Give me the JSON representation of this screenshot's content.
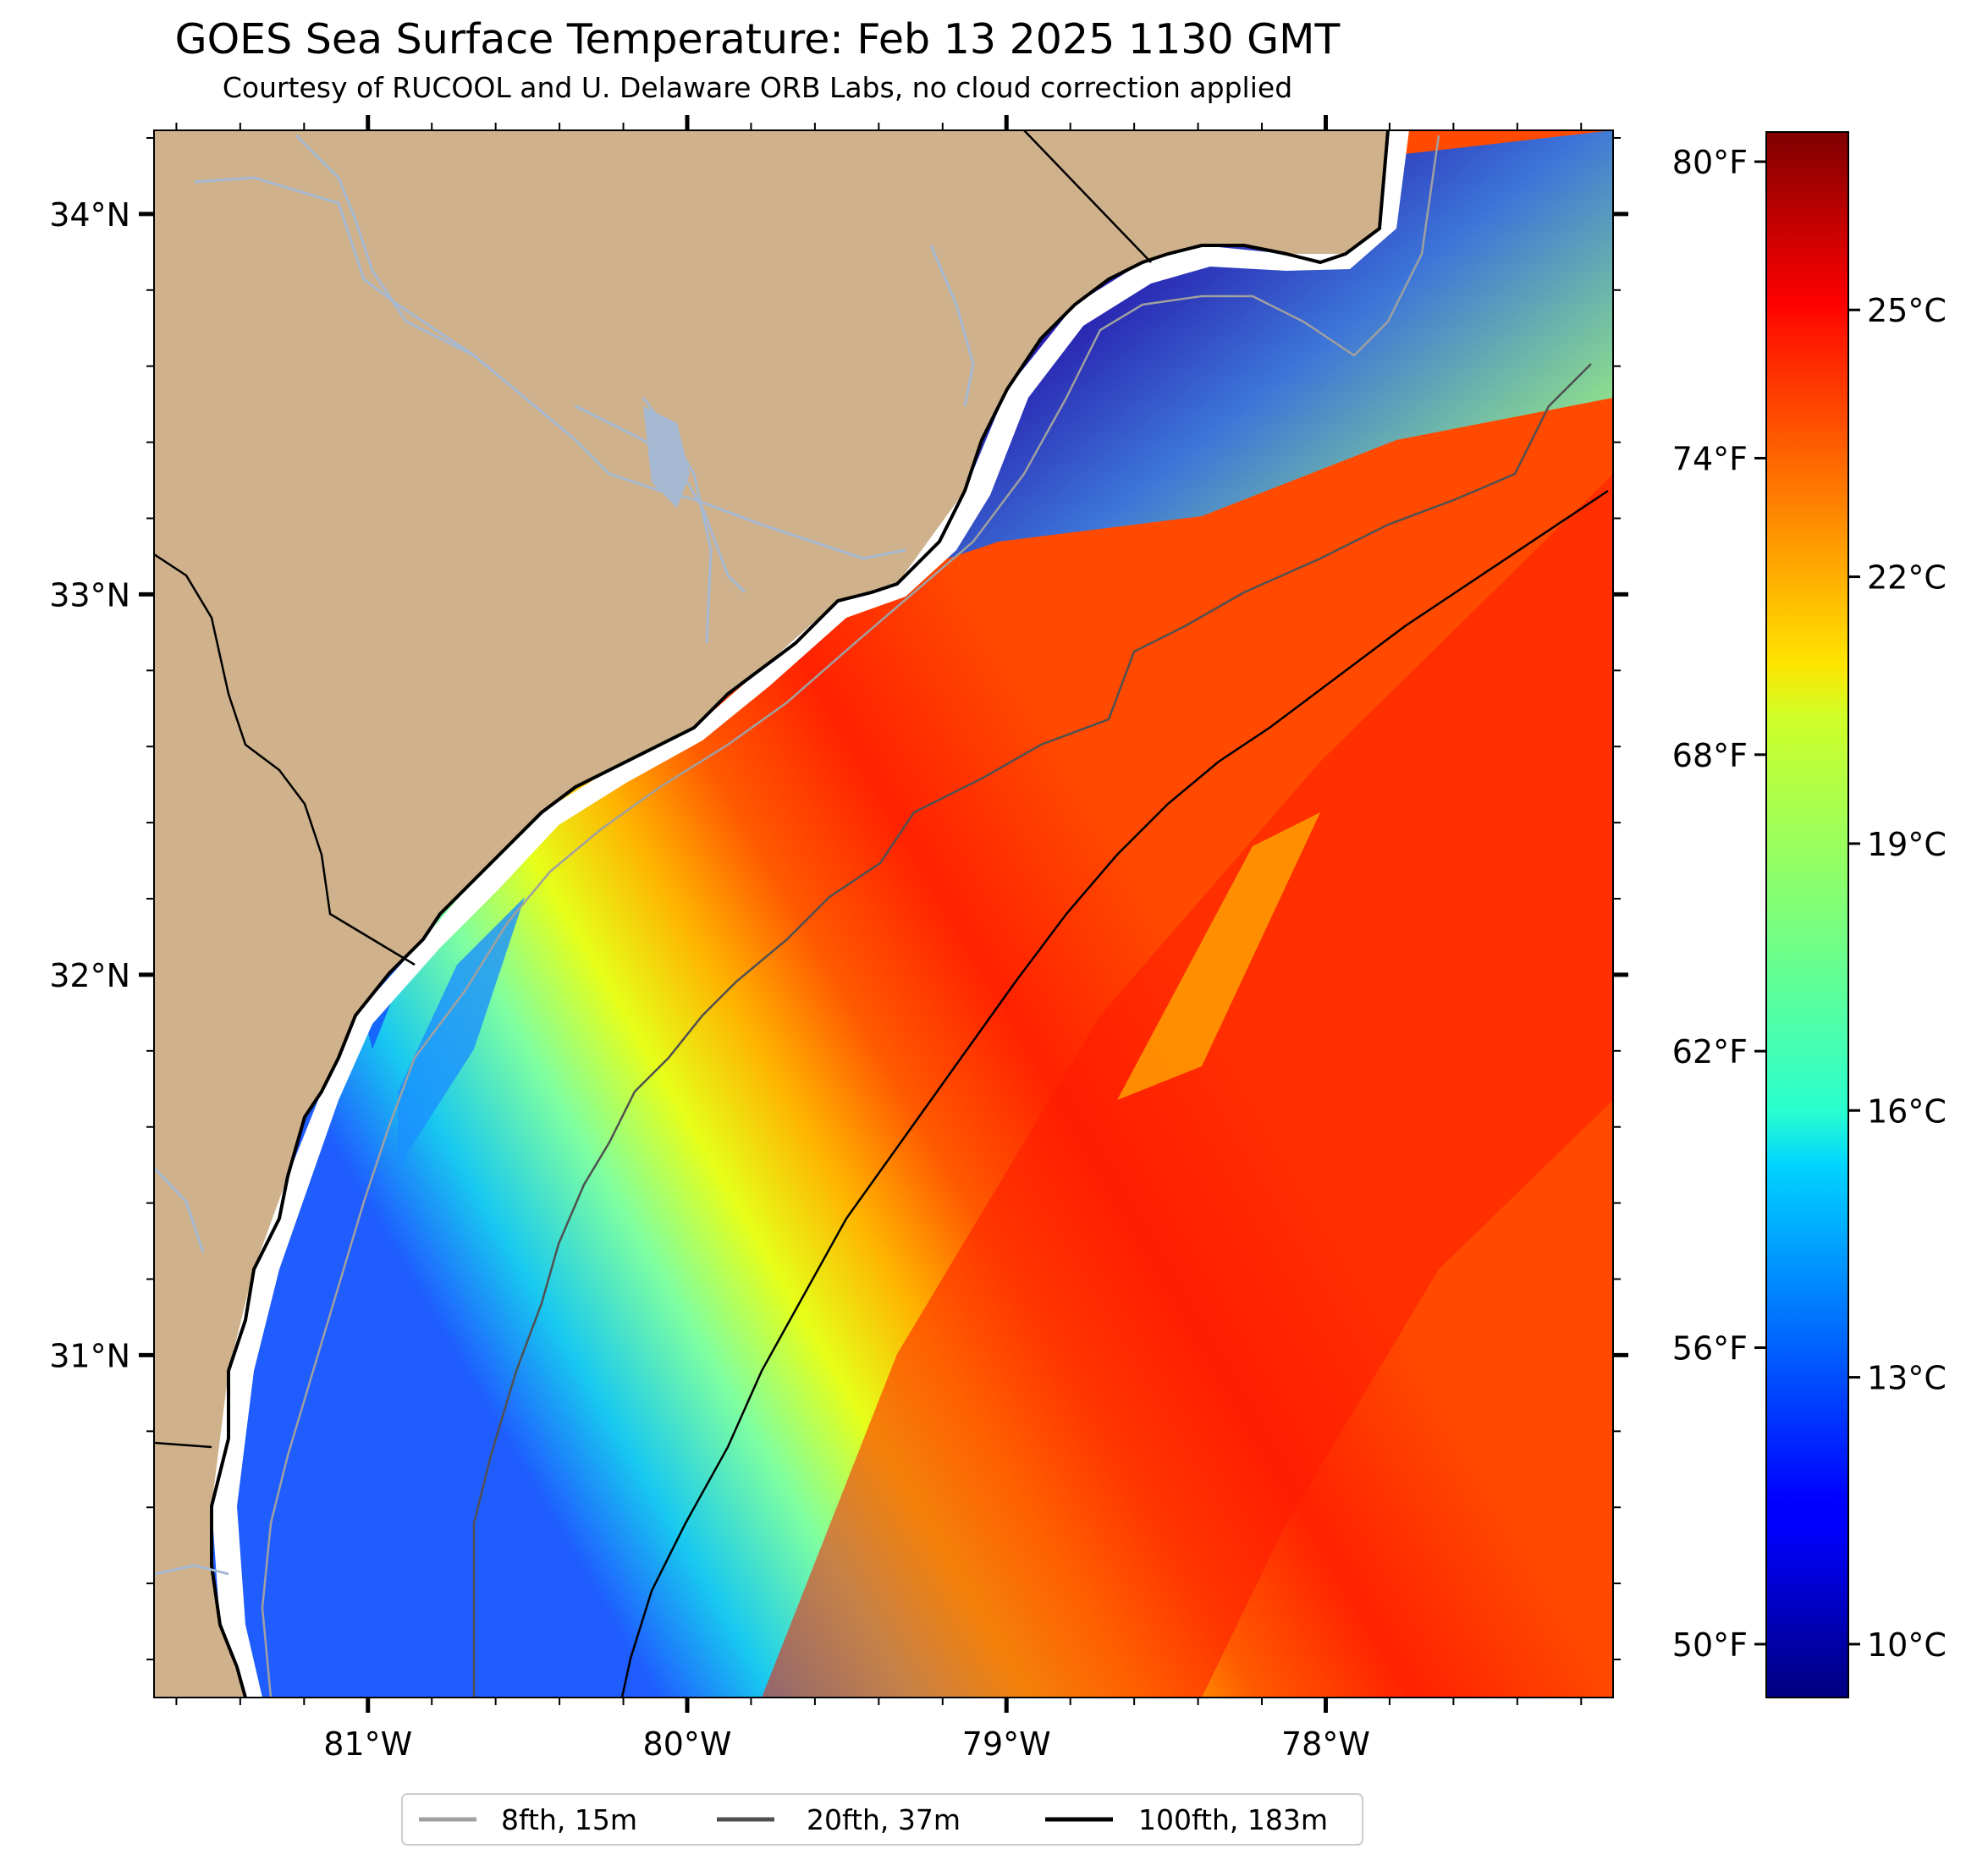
{
  "title": "GOES Sea Surface Temperature: Feb 13 2025 1130 GMT",
  "subtitle": "Courtesy of RUCOOL and U. Delaware ORB Labs, no cloud correction applied",
  "map": {
    "projection": "lat/lon",
    "lon_range": [
      -81.67,
      -77.1
    ],
    "lat_range": [
      30.1,
      34.22
    ],
    "lat_ticks": [
      {
        "value": 34,
        "label": "34°N"
      },
      {
        "value": 33,
        "label": "33°N"
      },
      {
        "value": 32,
        "label": "32°N"
      },
      {
        "value": 31,
        "label": "31°N"
      }
    ],
    "lon_ticks": [
      {
        "value": -81,
        "label": "81°W"
      },
      {
        "value": -80,
        "label": "80°W"
      },
      {
        "value": -79,
        "label": "79°W"
      },
      {
        "value": -78,
        "label": "78°W"
      }
    ],
    "land_color": "#cfb28c",
    "river_color": "#a6b9d3"
  },
  "colorbar": {
    "colormap": "jet",
    "range_c": [
      9.4,
      27.0
    ],
    "celsius_ticks": [
      {
        "value": 25,
        "label": "25°C"
      },
      {
        "value": 22,
        "label": "22°C"
      },
      {
        "value": 19,
        "label": "19°C"
      },
      {
        "value": 16,
        "label": "16°C"
      },
      {
        "value": 13,
        "label": "13°C"
      },
      {
        "value": 10,
        "label": "10°C"
      }
    ],
    "fahrenheit_ticks": [
      {
        "value": 80,
        "label": "80°F"
      },
      {
        "value": 74,
        "label": "74°F"
      },
      {
        "value": 68,
        "label": "68°F"
      },
      {
        "value": 62,
        "label": "62°F"
      },
      {
        "value": 56,
        "label": "56°F"
      },
      {
        "value": 50,
        "label": "50°F"
      }
    ]
  },
  "legend": {
    "placement": "bottom-center",
    "items": [
      {
        "label": "8fth, 15m",
        "color": "#a0a0a0"
      },
      {
        "label": "20fth, 37m",
        "color": "#505050"
      },
      {
        "label": "100fth, 183m",
        "color": "#000000"
      }
    ]
  }
}
